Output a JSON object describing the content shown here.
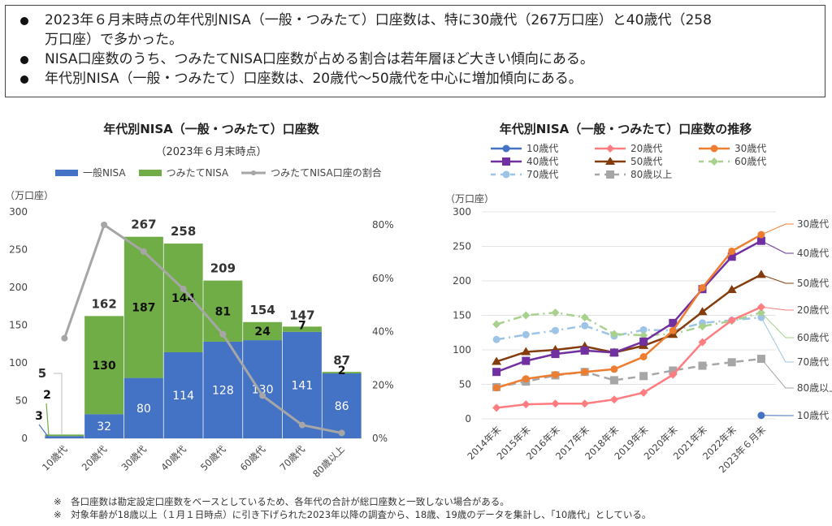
{
  "summary": {
    "bullets": [
      "2023年６月末時点の年代別NISA（一般・つみたて）口座数は、特に30歳代（267万口座）と40歳代（258",
      "万口座）で多かった。",
      "NISA口座数のうち、つみたてNISA口座数が占める割合は若年層ほど大きい傾向にある。",
      "年代別NISA（一般・つみたて）口座数は、20歳代～50歳代を中心に増加傾向にある。"
    ]
  },
  "colors": {
    "general_nisa": "#4472C4",
    "tsumitate_nisa": "#70AD47",
    "ratio_line": "#A6A6A6"
  },
  "chart_data": [
    {
      "type": "bar",
      "stacked": true,
      "title": "年代別NISA（一般・つみたて）口座数",
      "subtitle": "（2023年６月末時点）",
      "ylabel": "（万口座）",
      "xlabel": "",
      "categories": [
        "10歳代",
        "20歳代",
        "30歳代",
        "40歳代",
        "50歳代",
        "60歳代",
        "70歳代",
        "80歳以上"
      ],
      "series": [
        {
          "name": "一般NISA",
          "color": "#4472C4",
          "values": [
            3,
            32,
            80,
            114,
            128,
            130,
            141,
            86
          ]
        },
        {
          "name": "つみたてNISA",
          "color": "#70AD47",
          "values": [
            2,
            130,
            187,
            144,
            81,
            24,
            7,
            2
          ]
        }
      ],
      "totals": [
        5,
        162,
        267,
        258,
        209,
        154,
        147,
        87
      ],
      "secondary_series": {
        "name": "つみたてNISA口座の割合",
        "color": "#A6A6A6",
        "type": "line",
        "axis": "right",
        "values": [
          0.375,
          0.8,
          0.7,
          0.56,
          0.39,
          0.16,
          0.05,
          0.02
        ]
      },
      "ylim": [
        0,
        300
      ],
      "yticks": [
        "0",
        "50",
        "100",
        "150",
        "200",
        "250",
        "300"
      ],
      "y2lim": [
        0,
        0.8
      ],
      "y2ticks": [
        "0%",
        "20%",
        "40%",
        "60%",
        "80%"
      ],
      "legend": [
        "一般NISA",
        "つみたてNISA",
        "つみたてNISA口座の割合"
      ],
      "legend_position": "top",
      "grid": false
    },
    {
      "type": "line",
      "title": "年代別NISA（一般・つみたて）口座数の推移",
      "ylabel": "（万口座）",
      "xlabel": "",
      "x": [
        "2014年末",
        "2015年末",
        "2016年末",
        "2017年末",
        "2018年末",
        "2019年末",
        "2020年末",
        "2021年末",
        "2022年末",
        "2023年６月末"
      ],
      "series": [
        {
          "name": "10歳代",
          "color": "#4472C4",
          "dash": "solid",
          "marker": "circle",
          "values": [
            null,
            null,
            null,
            null,
            null,
            null,
            null,
            null,
            null,
            5
          ]
        },
        {
          "name": "20歳代",
          "color": "#FF7C80",
          "dash": "solid",
          "marker": "diamond",
          "values": [
            16,
            21,
            22,
            22,
            28,
            38,
            64,
            111,
            143,
            162
          ]
        },
        {
          "name": "30歳代",
          "color": "#ED7D31",
          "dash": "solid",
          "marker": "circle",
          "values": [
            45,
            58,
            64,
            68,
            72,
            90,
            128,
            190,
            243,
            267
          ]
        },
        {
          "name": "40歳代",
          "color": "#7030A0",
          "dash": "solid",
          "marker": "square",
          "values": [
            68,
            84,
            94,
            99,
            96,
            112,
            139,
            188,
            235,
            258
          ]
        },
        {
          "name": "50歳代",
          "color": "#843C0C",
          "dash": "solid",
          "marker": "triangle",
          "values": [
            83,
            97,
            100,
            105,
            96,
            106,
            122,
            155,
            187,
            209
          ]
        },
        {
          "name": "60歳代",
          "color": "#A9D18E",
          "dash": "dashdot",
          "marker": "diamond",
          "values": [
            137,
            150,
            154,
            147,
            123,
            121,
            123,
            134,
            142,
            154
          ]
        },
        {
          "name": "70歳代",
          "color": "#9DC3E6",
          "dash": "dashdot",
          "marker": "circle",
          "values": [
            115,
            122,
            128,
            135,
            120,
            129,
            128,
            139,
            143,
            147
          ]
        },
        {
          "name": "80歳以上",
          "color": "#A6A6A6",
          "dash": "dash",
          "marker": "square",
          "values": [
            46,
            54,
            63,
            68,
            56,
            62,
            70,
            77,
            82,
            87
          ]
        }
      ],
      "ylim": [
        0,
        300
      ],
      "yticks": [
        "0",
        "50",
        "100",
        "150",
        "200",
        "250",
        "300"
      ],
      "grid": true,
      "legend_position": "top",
      "end_labels": [
        "30歳代",
        "40歳代",
        "50歳代",
        "20歳代",
        "60歳代",
        "70歳代",
        "80歳以上",
        "10歳代"
      ]
    }
  ],
  "notes": [
    "※　各口座数は勘定設定口座数をベースとしているため、各年代の合計が総口座数と一致しない場合がある。",
    "※　対象年齢が18歳以上（１月１日時点）に引き下げられた2023年以降の調査から、18歳、19歳のデータを集計し、「10歳代」としている。"
  ]
}
